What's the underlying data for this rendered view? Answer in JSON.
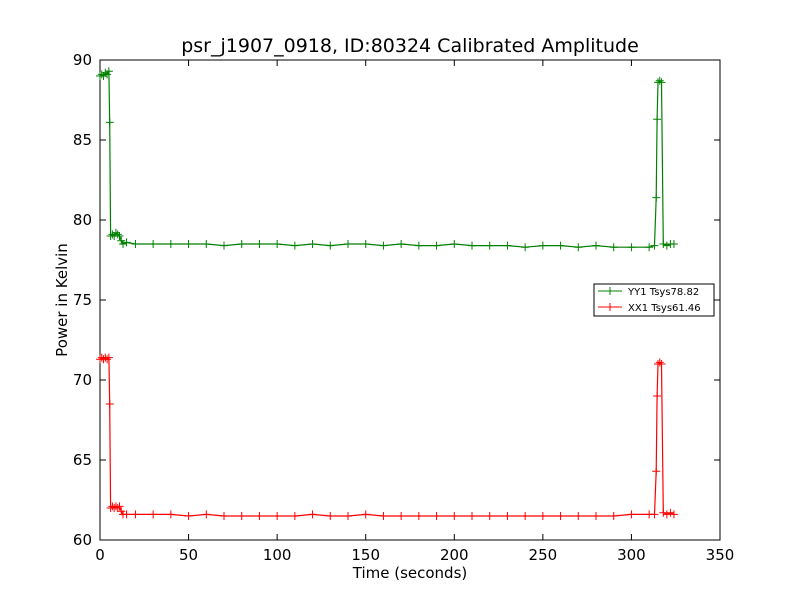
{
  "chart_data": {
    "type": "line",
    "title": "psr_j1907_0918, ID:80324 Calibrated Amplitude",
    "xlabel": "Time (seconds)",
    "ylabel": "Power in Kelvin",
    "xlim": [
      0,
      350
    ],
    "ylim": [
      60,
      90
    ],
    "x_ticks": [
      "0",
      "50",
      "100",
      "150",
      "200",
      "250",
      "300",
      "350"
    ],
    "y_ticks": [
      "60",
      "65",
      "70",
      "75",
      "80",
      "85",
      "90"
    ],
    "grid": false,
    "legend_position": "center-right",
    "series": [
      {
        "name": "YY1 Tsys78.82",
        "color": "#008000",
        "marker": "+",
        "points": [
          [
            0,
            89.0
          ],
          [
            1,
            89.1
          ],
          [
            2,
            89.0
          ],
          [
            3,
            89.2
          ],
          [
            4,
            89.1
          ],
          [
            5,
            89.3
          ],
          [
            5.5,
            86.1
          ],
          [
            6,
            79.0
          ],
          [
            7,
            79.1
          ],
          [
            8,
            79.0
          ],
          [
            9,
            79.2
          ],
          [
            10,
            79.1
          ],
          [
            11,
            79.0
          ],
          [
            12,
            78.7
          ],
          [
            13,
            78.5
          ],
          [
            15,
            78.6
          ],
          [
            20,
            78.5
          ],
          [
            30,
            78.5
          ],
          [
            40,
            78.5
          ],
          [
            50,
            78.5
          ],
          [
            60,
            78.5
          ],
          [
            70,
            78.4
          ],
          [
            80,
            78.5
          ],
          [
            90,
            78.5
          ],
          [
            100,
            78.5
          ],
          [
            110,
            78.4
          ],
          [
            120,
            78.5
          ],
          [
            130,
            78.4
          ],
          [
            140,
            78.5
          ],
          [
            150,
            78.5
          ],
          [
            160,
            78.4
          ],
          [
            170,
            78.5
          ],
          [
            180,
            78.4
          ],
          [
            190,
            78.4
          ],
          [
            200,
            78.5
          ],
          [
            210,
            78.4
          ],
          [
            220,
            78.4
          ],
          [
            230,
            78.4
          ],
          [
            240,
            78.3
          ],
          [
            250,
            78.4
          ],
          [
            260,
            78.4
          ],
          [
            270,
            78.3
          ],
          [
            280,
            78.4
          ],
          [
            290,
            78.3
          ],
          [
            300,
            78.3
          ],
          [
            310,
            78.3
          ],
          [
            313,
            78.4
          ],
          [
            314,
            81.4
          ],
          [
            314.5,
            86.3
          ],
          [
            315,
            88.6
          ],
          [
            316,
            88.7
          ],
          [
            317,
            88.6
          ],
          [
            318,
            78.5
          ],
          [
            320,
            78.4
          ],
          [
            322,
            78.5
          ],
          [
            324,
            78.5
          ]
        ]
      },
      {
        "name": "XX1 Tsys61.46",
        "color": "#ff0000",
        "marker": "+",
        "points": [
          [
            0,
            71.3
          ],
          [
            1,
            71.4
          ],
          [
            2,
            71.3
          ],
          [
            3,
            71.4
          ],
          [
            4,
            71.3
          ],
          [
            5,
            71.4
          ],
          [
            5.5,
            68.5
          ],
          [
            6,
            62.0
          ],
          [
            7,
            62.1
          ],
          [
            8,
            62.0
          ],
          [
            9,
            62.1
          ],
          [
            10,
            62.0
          ],
          [
            11,
            62.1
          ],
          [
            12,
            61.8
          ],
          [
            13,
            61.6
          ],
          [
            15,
            61.6
          ],
          [
            20,
            61.6
          ],
          [
            30,
            61.6
          ],
          [
            40,
            61.6
          ],
          [
            50,
            61.5
          ],
          [
            60,
            61.6
          ],
          [
            70,
            61.5
          ],
          [
            80,
            61.5
          ],
          [
            90,
            61.5
          ],
          [
            100,
            61.5
          ],
          [
            110,
            61.5
          ],
          [
            120,
            61.6
          ],
          [
            130,
            61.5
          ],
          [
            140,
            61.5
          ],
          [
            150,
            61.6
          ],
          [
            160,
            61.5
          ],
          [
            170,
            61.5
          ],
          [
            180,
            61.5
          ],
          [
            190,
            61.5
          ],
          [
            200,
            61.5
          ],
          [
            210,
            61.5
          ],
          [
            220,
            61.5
          ],
          [
            230,
            61.5
          ],
          [
            240,
            61.5
          ],
          [
            250,
            61.5
          ],
          [
            260,
            61.5
          ],
          [
            270,
            61.5
          ],
          [
            280,
            61.5
          ],
          [
            290,
            61.5
          ],
          [
            300,
            61.6
          ],
          [
            310,
            61.6
          ],
          [
            313,
            61.6
          ],
          [
            314,
            64.3
          ],
          [
            314.5,
            69.0
          ],
          [
            315,
            71.0
          ],
          [
            316,
            71.1
          ],
          [
            317,
            71.0
          ],
          [
            318,
            61.7
          ],
          [
            320,
            61.6
          ],
          [
            322,
            61.7
          ],
          [
            324,
            61.6
          ]
        ]
      }
    ]
  }
}
